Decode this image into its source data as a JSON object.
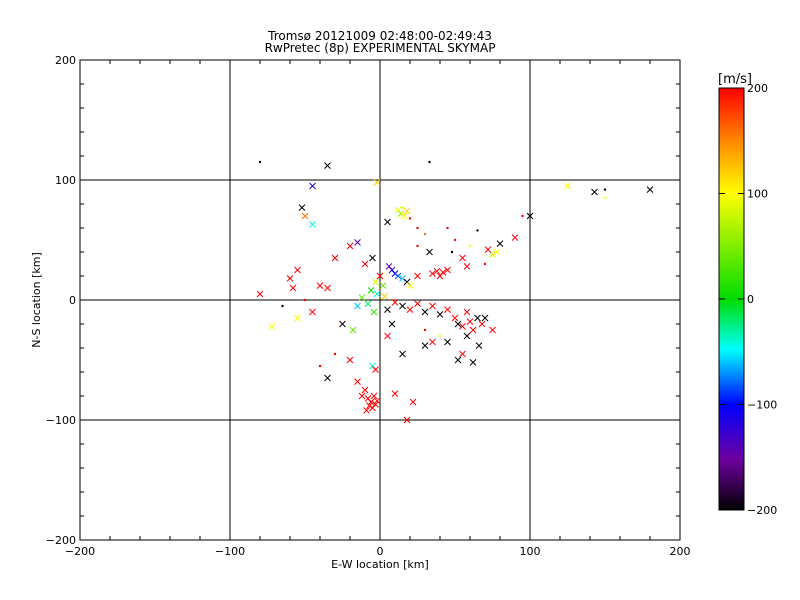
{
  "chart_data": {
    "type": "scatter",
    "title": "Tromsø 20121009 02:48:00-02:49:43",
    "subtitle": "RwPretec (8p) EXPERIMENTAL SKYMAP",
    "xlabel": "E-W location [km]",
    "ylabel": "N-S location [km]",
    "xlim": [
      -200,
      200
    ],
    "ylim": [
      -200,
      200
    ],
    "x_ticks": [
      -200,
      -100,
      0,
      100,
      200
    ],
    "x_tick_labels": [
      "−200",
      "−100",
      "0",
      "100",
      "200"
    ],
    "y_ticks": [
      -200,
      -100,
      0,
      100,
      200
    ],
    "y_tick_labels": [
      "−200",
      "−100",
      "0",
      "100",
      "200"
    ],
    "grid": true,
    "colorbar": {
      "label": "[m/s]",
      "range": [
        -200,
        200
      ],
      "ticks": [
        -200,
        -100,
        0,
        100,
        200
      ],
      "tick_labels": [
        "−200",
        "−100",
        "0",
        "100",
        "200"
      ]
    },
    "points": [
      {
        "x": -80,
        "y": 115,
        "v": -200,
        "m": "dot"
      },
      {
        "x": -35,
        "y": 112,
        "v": -200,
        "m": "cross"
      },
      {
        "x": 33,
        "y": 115,
        "v": -200,
        "m": "dot"
      },
      {
        "x": -2,
        "y": 98,
        "v": 120,
        "m": "cross"
      },
      {
        "x": -45,
        "y": 95,
        "v": -120,
        "m": "cross"
      },
      {
        "x": -52,
        "y": 77,
        "v": -200,
        "m": "cross"
      },
      {
        "x": -50,
        "y": 70,
        "v": 160,
        "m": "cross"
      },
      {
        "x": -45,
        "y": 63,
        "v": -40,
        "m": "cross"
      },
      {
        "x": 125,
        "y": 95,
        "v": 100,
        "m": "cross"
      },
      {
        "x": 143,
        "y": 90,
        "v": -200,
        "m": "cross"
      },
      {
        "x": 150,
        "y": 92,
        "v": -200,
        "m": "dot"
      },
      {
        "x": 150,
        "y": 85,
        "v": 100,
        "m": "dot"
      },
      {
        "x": 180,
        "y": 92,
        "v": -200,
        "m": "cross"
      },
      {
        "x": 100,
        "y": 70,
        "v": -200,
        "m": "cross"
      },
      {
        "x": 95,
        "y": 70,
        "v": 200,
        "m": "dot"
      },
      {
        "x": 5,
        "y": 65,
        "v": -200,
        "m": "cross"
      },
      {
        "x": 12,
        "y": 75,
        "v": 100,
        "m": "cross"
      },
      {
        "x": 14,
        "y": 72,
        "v": 60,
        "m": "cross"
      },
      {
        "x": 16,
        "y": 70,
        "v": 100,
        "m": "cross"
      },
      {
        "x": 18,
        "y": 74,
        "v": 120,
        "m": "cross"
      },
      {
        "x": 15,
        "y": 77,
        "v": 80,
        "m": "dot"
      },
      {
        "x": 20,
        "y": 68,
        "v": 200,
        "m": "dot"
      },
      {
        "x": 25,
        "y": 60,
        "v": 200,
        "m": "dot"
      },
      {
        "x": 30,
        "y": 55,
        "v": 160,
        "m": "dot"
      },
      {
        "x": 45,
        "y": 60,
        "v": 200,
        "m": "dot"
      },
      {
        "x": 65,
        "y": 58,
        "v": -200,
        "m": "dot"
      },
      {
        "x": 90,
        "y": 52,
        "v": 200,
        "m": "cross"
      },
      {
        "x": 80,
        "y": 47,
        "v": -200,
        "m": "cross"
      },
      {
        "x": 78,
        "y": 40,
        "v": 100,
        "m": "cross"
      },
      {
        "x": 75,
        "y": 38,
        "v": 80,
        "m": "cross"
      },
      {
        "x": 72,
        "y": 42,
        "v": 200,
        "m": "cross"
      },
      {
        "x": 55,
        "y": 35,
        "v": 200,
        "m": "cross"
      },
      {
        "x": 58,
        "y": 28,
        "v": 200,
        "m": "cross"
      },
      {
        "x": 33,
        "y": 40,
        "v": -200,
        "m": "cross"
      },
      {
        "x": -15,
        "y": 48,
        "v": -140,
        "m": "cross"
      },
      {
        "x": -20,
        "y": 45,
        "v": 200,
        "m": "cross"
      },
      {
        "x": -30,
        "y": 35,
        "v": 200,
        "m": "cross"
      },
      {
        "x": -55,
        "y": 25,
        "v": 200,
        "m": "cross"
      },
      {
        "x": -60,
        "y": 18,
        "v": 200,
        "m": "cross"
      },
      {
        "x": -80,
        "y": 5,
        "v": 200,
        "m": "cross"
      },
      {
        "x": -58,
        "y": 10,
        "v": 200,
        "m": "cross"
      },
      {
        "x": -40,
        "y": 12,
        "v": 200,
        "m": "cross"
      },
      {
        "x": -35,
        "y": 10,
        "v": 200,
        "m": "cross"
      },
      {
        "x": -10,
        "y": 30,
        "v": 200,
        "m": "cross"
      },
      {
        "x": -5,
        "y": 35,
        "v": -200,
        "m": "cross"
      },
      {
        "x": 0,
        "y": 20,
        "v": 200,
        "m": "cross"
      },
      {
        "x": -3,
        "y": 15,
        "v": 80,
        "m": "cross"
      },
      {
        "x": 2,
        "y": 12,
        "v": 40,
        "m": "cross"
      },
      {
        "x": -6,
        "y": 8,
        "v": 0,
        "m": "cross"
      },
      {
        "x": -2,
        "y": 5,
        "v": -40,
        "m": "cross"
      },
      {
        "x": 3,
        "y": 3,
        "v": 120,
        "m": "cross"
      },
      {
        "x": -8,
        "y": -3,
        "v": -20,
        "m": "cross"
      },
      {
        "x": -12,
        "y": 2,
        "v": 40,
        "m": "cross"
      },
      {
        "x": -15,
        "y": -5,
        "v": -60,
        "m": "cross"
      },
      {
        "x": -4,
        "y": -10,
        "v": 20,
        "m": "cross"
      },
      {
        "x": 5,
        "y": -8,
        "v": -200,
        "m": "cross"
      },
      {
        "x": 8,
        "y": 25,
        "v": -120,
        "m": "cross"
      },
      {
        "x": 10,
        "y": 22,
        "v": -100,
        "m": "cross"
      },
      {
        "x": 12,
        "y": 20,
        "v": -80,
        "m": "cross"
      },
      {
        "x": 6,
        "y": 28,
        "v": -150,
        "m": "cross"
      },
      {
        "x": 15,
        "y": 18,
        "v": -60,
        "m": "cross"
      },
      {
        "x": 18,
        "y": 15,
        "v": -200,
        "m": "cross"
      },
      {
        "x": 20,
        "y": 12,
        "v": 100,
        "m": "cross"
      },
      {
        "x": 25,
        "y": 20,
        "v": 200,
        "m": "cross"
      },
      {
        "x": 35,
        "y": 22,
        "v": 200,
        "m": "cross"
      },
      {
        "x": 38,
        "y": 24,
        "v": 200,
        "m": "cross"
      },
      {
        "x": 40,
        "y": 20,
        "v": 200,
        "m": "cross"
      },
      {
        "x": 42,
        "y": 23,
        "v": 200,
        "m": "cross"
      },
      {
        "x": 45,
        "y": 25,
        "v": 200,
        "m": "cross"
      },
      {
        "x": 10,
        "y": -2,
        "v": 200,
        "m": "cross"
      },
      {
        "x": 15,
        "y": -5,
        "v": -200,
        "m": "cross"
      },
      {
        "x": 20,
        "y": -8,
        "v": 200,
        "m": "cross"
      },
      {
        "x": 25,
        "y": -3,
        "v": 200,
        "m": "cross"
      },
      {
        "x": 30,
        "y": -10,
        "v": -200,
        "m": "cross"
      },
      {
        "x": 35,
        "y": -5,
        "v": 200,
        "m": "cross"
      },
      {
        "x": 40,
        "y": -12,
        "v": -200,
        "m": "cross"
      },
      {
        "x": 45,
        "y": -8,
        "v": 200,
        "m": "cross"
      },
      {
        "x": 50,
        "y": -15,
        "v": 200,
        "m": "cross"
      },
      {
        "x": 55,
        "y": -22,
        "v": 200,
        "m": "cross"
      },
      {
        "x": 52,
        "y": -20,
        "v": -200,
        "m": "cross"
      },
      {
        "x": 58,
        "y": -10,
        "v": 200,
        "m": "cross"
      },
      {
        "x": 60,
        "y": -18,
        "v": 200,
        "m": "cross"
      },
      {
        "x": 62,
        "y": -25,
        "v": 200,
        "m": "cross"
      },
      {
        "x": 65,
        "y": -15,
        "v": -200,
        "m": "cross"
      },
      {
        "x": 68,
        "y": -20,
        "v": 200,
        "m": "cross"
      },
      {
        "x": 70,
        "y": -15,
        "v": -200,
        "m": "cross"
      },
      {
        "x": 66,
        "y": -38,
        "v": -200,
        "m": "cross"
      },
      {
        "x": 75,
        "y": -25,
        "v": 200,
        "m": "cross"
      },
      {
        "x": 58,
        "y": -30,
        "v": -200,
        "m": "cross"
      },
      {
        "x": 45,
        "y": -35,
        "v": -200,
        "m": "cross"
      },
      {
        "x": 35,
        "y": -35,
        "v": 200,
        "m": "cross"
      },
      {
        "x": 30,
        "y": -38,
        "v": -200,
        "m": "cross"
      },
      {
        "x": 55,
        "y": -45,
        "v": 200,
        "m": "cross"
      },
      {
        "x": 52,
        "y": -50,
        "v": -200,
        "m": "cross"
      },
      {
        "x": 62,
        "y": -52,
        "v": -200,
        "m": "cross"
      },
      {
        "x": 15,
        "y": -45,
        "v": -200,
        "m": "cross"
      },
      {
        "x": 5,
        "y": -30,
        "v": 200,
        "m": "cross"
      },
      {
        "x": 8,
        "y": -20,
        "v": -200,
        "m": "cross"
      },
      {
        "x": -20,
        "y": -50,
        "v": 200,
        "m": "cross"
      },
      {
        "x": -35,
        "y": -65,
        "v": -200,
        "m": "cross"
      },
      {
        "x": -15,
        "y": -68,
        "v": 200,
        "m": "cross"
      },
      {
        "x": -10,
        "y": -75,
        "v": 200,
        "m": "cross"
      },
      {
        "x": -5,
        "y": -55,
        "v": -40,
        "m": "cross"
      },
      {
        "x": -3,
        "y": -58,
        "v": 200,
        "m": "cross"
      },
      {
        "x": -12,
        "y": -80,
        "v": 200,
        "m": "cross"
      },
      {
        "x": -8,
        "y": -82,
        "v": 200,
        "m": "cross"
      },
      {
        "x": -6,
        "y": -85,
        "v": 200,
        "m": "cross"
      },
      {
        "x": -4,
        "y": -80,
        "v": 200,
        "m": "cross"
      },
      {
        "x": -2,
        "y": -84,
        "v": 200,
        "m": "cross"
      },
      {
        "x": -7,
        "y": -88,
        "v": 200,
        "m": "cross"
      },
      {
        "x": -5,
        "y": -90,
        "v": 200,
        "m": "cross"
      },
      {
        "x": -3,
        "y": -87,
        "v": 200,
        "m": "cross"
      },
      {
        "x": -9,
        "y": -92,
        "v": 200,
        "m": "cross"
      },
      {
        "x": 10,
        "y": -78,
        "v": 200,
        "m": "cross"
      },
      {
        "x": 22,
        "y": -85,
        "v": 200,
        "m": "cross"
      },
      {
        "x": 18,
        "y": -100,
        "v": 200,
        "m": "cross"
      },
      {
        "x": -55,
        "y": -15,
        "v": 100,
        "m": "cross"
      },
      {
        "x": -72,
        "y": -22,
        "v": 100,
        "m": "cross"
      },
      {
        "x": -45,
        "y": -10,
        "v": 200,
        "m": "cross"
      },
      {
        "x": -25,
        "y": -20,
        "v": -200,
        "m": "cross"
      },
      {
        "x": -18,
        "y": -25,
        "v": 40,
        "m": "cross"
      },
      {
        "x": -50,
        "y": 0,
        "v": 200,
        "m": "dot"
      },
      {
        "x": -65,
        "y": -5,
        "v": -200,
        "m": "dot"
      },
      {
        "x": -30,
        "y": -45,
        "v": 200,
        "m": "dot"
      },
      {
        "x": -40,
        "y": -55,
        "v": 200,
        "m": "dot"
      },
      {
        "x": 30,
        "y": -25,
        "v": 200,
        "m": "dot"
      },
      {
        "x": 40,
        "y": -30,
        "v": 100,
        "m": "dot"
      },
      {
        "x": 25,
        "y": 45,
        "v": 200,
        "m": "dot"
      },
      {
        "x": 50,
        "y": 50,
        "v": 200,
        "m": "dot"
      },
      {
        "x": 60,
        "y": 45,
        "v": 100,
        "m": "dot"
      },
      {
        "x": 70,
        "y": 30,
        "v": 200,
        "m": "dot"
      },
      {
        "x": 48,
        "y": 40,
        "v": -200,
        "m": "dot"
      }
    ]
  }
}
